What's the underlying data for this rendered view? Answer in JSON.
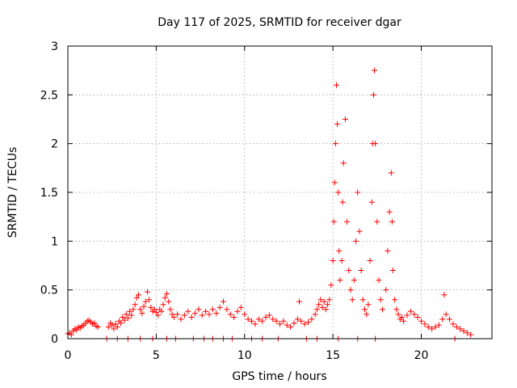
{
  "chart_data": {
    "type": "scatter",
    "title": "Day 117 of 2025, SRMTID for receiver dgar",
    "xlabel": "GPS time / hours",
    "ylabel": "SRMTID / TECUs",
    "xlim": [
      0,
      24
    ],
    "ylim": [
      0,
      3
    ],
    "x_ticks": [
      0,
      5,
      10,
      15,
      20
    ],
    "x_tick_labels": [
      "0",
      "5",
      "10",
      "15",
      "20"
    ],
    "y_ticks": [
      0,
      0.5,
      1,
      1.5,
      2,
      2.5,
      3
    ],
    "y_tick_labels": [
      "0",
      "0.5",
      "1",
      "1.5",
      "2",
      "2.5",
      "3"
    ],
    "grid": true,
    "marker": "plus",
    "series": [
      {
        "name": "SRMTID",
        "color": "#ff0000",
        "points": [
          [
            0.0,
            0.05
          ],
          [
            0.1,
            0.06
          ],
          [
            0.2,
            0.04
          ],
          [
            0.3,
            0.08
          ],
          [
            0.4,
            0.1
          ],
          [
            0.5,
            0.09
          ],
          [
            0.6,
            0.12
          ],
          [
            0.7,
            0.11
          ],
          [
            0.8,
            0.13
          ],
          [
            0.9,
            0.14
          ],
          [
            1.0,
            0.16
          ],
          [
            1.1,
            0.18
          ],
          [
            1.2,
            0.19
          ],
          [
            1.3,
            0.17
          ],
          [
            1.4,
            0.15
          ],
          [
            1.5,
            0.16
          ],
          [
            1.6,
            0.13
          ],
          [
            1.7,
            0.12
          ],
          [
            2.2,
            0.0
          ],
          [
            2.3,
            0.12
          ],
          [
            2.4,
            0.16
          ],
          [
            2.5,
            0.14
          ],
          [
            2.6,
            0.1
          ],
          [
            2.7,
            0.15
          ],
          [
            2.8,
            0.12
          ],
          [
            2.9,
            0.18
          ],
          [
            3.0,
            0.16
          ],
          [
            3.1,
            0.22
          ],
          [
            3.2,
            0.19
          ],
          [
            3.3,
            0.25
          ],
          [
            3.4,
            0.21
          ],
          [
            3.5,
            0.28
          ],
          [
            3.6,
            0.24
          ],
          [
            3.7,
            0.3
          ],
          [
            3.8,
            0.35
          ],
          [
            3.9,
            0.42
          ],
          [
            4.0,
            0.45
          ],
          [
            4.1,
            0.3
          ],
          [
            4.2,
            0.26
          ],
          [
            4.3,
            0.33
          ],
          [
            4.4,
            0.38
          ],
          [
            4.5,
            0.48
          ],
          [
            4.6,
            0.4
          ],
          [
            4.7,
            0.32
          ],
          [
            4.8,
            0.28
          ],
          [
            4.9,
            0.3
          ],
          [
            5.0,
            0.27
          ],
          [
            5.1,
            0.24
          ],
          [
            5.2,
            0.3
          ],
          [
            5.3,
            0.28
          ],
          [
            5.4,
            0.35
          ],
          [
            5.5,
            0.42
          ],
          [
            5.6,
            0.46
          ],
          [
            5.7,
            0.38
          ],
          [
            5.8,
            0.3
          ],
          [
            5.9,
            0.25
          ],
          [
            6.0,
            0.22
          ],
          [
            6.2,
            0.25
          ],
          [
            6.4,
            0.2
          ],
          [
            6.6,
            0.24
          ],
          [
            6.8,
            0.28
          ],
          [
            7.0,
            0.22
          ],
          [
            7.2,
            0.26
          ],
          [
            7.4,
            0.3
          ],
          [
            7.6,
            0.24
          ],
          [
            7.8,
            0.28
          ],
          [
            8.0,
            0.25
          ],
          [
            8.2,
            0.3
          ],
          [
            8.4,
            0.26
          ],
          [
            8.6,
            0.32
          ],
          [
            8.8,
            0.38
          ],
          [
            9.0,
            0.3
          ],
          [
            9.2,
            0.25
          ],
          [
            9.4,
            0.22
          ],
          [
            9.6,
            0.28
          ],
          [
            9.8,
            0.32
          ],
          [
            10.0,
            0.25
          ],
          [
            10.2,
            0.2
          ],
          [
            10.4,
            0.18
          ],
          [
            10.6,
            0.15
          ],
          [
            10.8,
            0.2
          ],
          [
            11.0,
            0.18
          ],
          [
            11.2,
            0.22
          ],
          [
            11.4,
            0.24
          ],
          [
            11.6,
            0.2
          ],
          [
            11.8,
            0.18
          ],
          [
            12.0,
            0.15
          ],
          [
            12.2,
            0.18
          ],
          [
            12.4,
            0.14
          ],
          [
            12.6,
            0.12
          ],
          [
            12.8,
            0.16
          ],
          [
            13.0,
            0.2
          ],
          [
            13.1,
            0.38
          ],
          [
            13.2,
            0.18
          ],
          [
            13.4,
            0.15
          ],
          [
            13.6,
            0.17
          ],
          [
            13.8,
            0.2
          ],
          [
            14.0,
            0.25
          ],
          [
            14.1,
            0.3
          ],
          [
            14.2,
            0.35
          ],
          [
            14.3,
            0.4
          ],
          [
            14.4,
            0.32
          ],
          [
            14.5,
            0.38
          ],
          [
            14.6,
            0.3
          ],
          [
            14.7,
            0.35
          ],
          [
            14.8,
            0.4
          ],
          [
            14.9,
            0.55
          ],
          [
            15.0,
            0.8
          ],
          [
            15.05,
            1.2
          ],
          [
            15.1,
            1.6
          ],
          [
            15.15,
            2.0
          ],
          [
            15.2,
            2.6
          ],
          [
            15.25,
            2.2
          ],
          [
            15.3,
            1.5
          ],
          [
            15.35,
            0.9
          ],
          [
            15.4,
            0.6
          ],
          [
            15.5,
            0.8
          ],
          [
            15.55,
            1.4
          ],
          [
            15.6,
            1.8
          ],
          [
            15.7,
            2.25
          ],
          [
            15.8,
            1.2
          ],
          [
            15.9,
            0.7
          ],
          [
            16.0,
            0.5
          ],
          [
            16.1,
            0.4
          ],
          [
            16.2,
            0.6
          ],
          [
            16.3,
            1.0
          ],
          [
            16.4,
            1.5
          ],
          [
            16.5,
            1.1
          ],
          [
            16.6,
            0.7
          ],
          [
            16.7,
            0.4
          ],
          [
            16.8,
            0.3
          ],
          [
            16.9,
            0.25
          ],
          [
            17.0,
            0.35
          ],
          [
            17.1,
            0.8
          ],
          [
            17.2,
            1.4
          ],
          [
            17.25,
            2.0
          ],
          [
            17.3,
            2.5
          ],
          [
            17.35,
            2.75
          ],
          [
            17.4,
            2.0
          ],
          [
            17.5,
            1.2
          ],
          [
            17.6,
            0.6
          ],
          [
            17.7,
            0.4
          ],
          [
            17.8,
            0.3
          ],
          [
            18.0,
            0.5
          ],
          [
            18.1,
            0.9
          ],
          [
            18.2,
            1.3
          ],
          [
            18.3,
            1.7
          ],
          [
            18.35,
            1.2
          ],
          [
            18.4,
            0.7
          ],
          [
            18.5,
            0.4
          ],
          [
            18.6,
            0.3
          ],
          [
            18.7,
            0.25
          ],
          [
            18.8,
            0.2
          ],
          [
            18.9,
            0.22
          ],
          [
            19.0,
            0.18
          ],
          [
            19.2,
            0.24
          ],
          [
            19.4,
            0.28
          ],
          [
            19.6,
            0.25
          ],
          [
            19.8,
            0.22
          ],
          [
            20.0,
            0.18
          ],
          [
            20.2,
            0.15
          ],
          [
            20.4,
            0.12
          ],
          [
            20.6,
            0.1
          ],
          [
            20.8,
            0.12
          ],
          [
            21.0,
            0.14
          ],
          [
            21.2,
            0.2
          ],
          [
            21.3,
            0.45
          ],
          [
            21.4,
            0.25
          ],
          [
            21.6,
            0.2
          ],
          [
            21.8,
            0.15
          ],
          [
            22.0,
            0.12
          ],
          [
            22.2,
            0.1
          ],
          [
            22.4,
            0.08
          ],
          [
            22.6,
            0.06
          ],
          [
            22.8,
            0.04
          ],
          [
            2.8,
            0.0
          ],
          [
            3.4,
            0.0
          ],
          [
            4.1,
            0.0
          ],
          [
            4.8,
            0.0
          ],
          [
            5.6,
            0.0
          ],
          [
            6.1,
            0.0
          ],
          [
            7.1,
            0.0
          ],
          [
            7.7,
            0.0
          ],
          [
            8.2,
            0.0
          ],
          [
            8.8,
            0.0
          ],
          [
            9.3,
            0.0
          ],
          [
            10.4,
            0.0
          ],
          [
            11.0,
            0.0
          ],
          [
            11.9,
            0.0
          ],
          [
            13.5,
            0.0
          ],
          [
            14.1,
            0.0
          ],
          [
            15.3,
            0.0
          ],
          [
            16.4,
            0.0
          ],
          [
            17.4,
            0.0
          ],
          [
            21.9,
            0.0
          ]
        ]
      }
    ]
  }
}
